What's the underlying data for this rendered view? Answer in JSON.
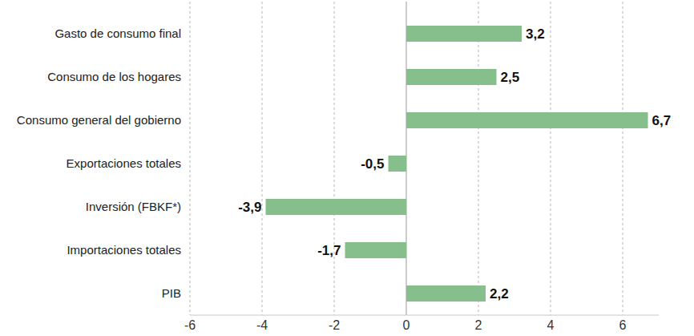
{
  "chart_data": {
    "type": "bar",
    "orientation": "horizontal",
    "categories": [
      "Gasto de consumo final",
      "Consumo de los hogares",
      "Consumo general del gobierno",
      "Exportaciones totales",
      "Inversión (FBKF*)",
      "Importaciones totales",
      "PIB"
    ],
    "values": [
      3.2,
      2.5,
      6.7,
      -0.5,
      -3.9,
      -1.7,
      2.2
    ],
    "value_labels": [
      "3,2",
      "2,5",
      "6,7",
      "-0,5",
      "-3,9",
      "-1,7",
      "2,2"
    ],
    "data_labels": true,
    "color": "#86bf8c",
    "xlim": [
      -6,
      7
    ],
    "xticks": [
      -6,
      -4,
      -2,
      0,
      2,
      4,
      6
    ],
    "grid": true
  }
}
